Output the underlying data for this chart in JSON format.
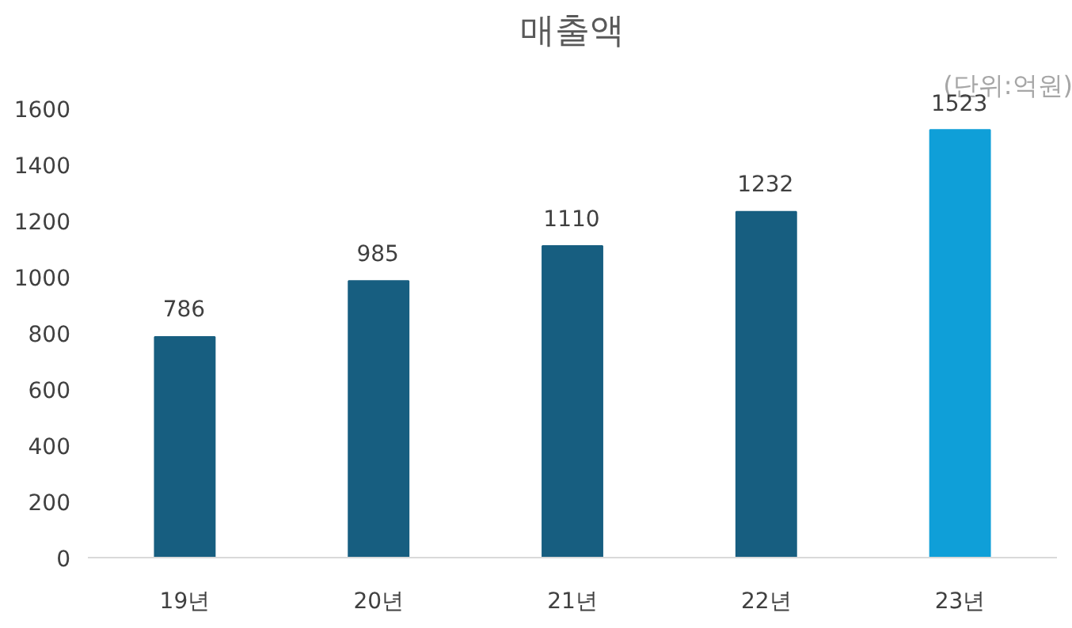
{
  "chart_data": {
    "type": "bar",
    "title": "매출액",
    "categories": [
      "19년",
      "20년",
      "21년",
      "22년",
      "23년"
    ],
    "values": [
      786,
      985,
      1110,
      1232,
      1523
    ],
    "colors": [
      "#175e80",
      "#175e80",
      "#175e80",
      "#175e80",
      "#0f9fd8"
    ],
    "ylim": [
      0,
      1600
    ],
    "yticks": [
      0,
      200,
      400,
      600,
      800,
      1000,
      1200,
      1400,
      1600
    ],
    "data_labels": true,
    "grid": false,
    "annotations": [
      "(단위:억원)"
    ]
  }
}
